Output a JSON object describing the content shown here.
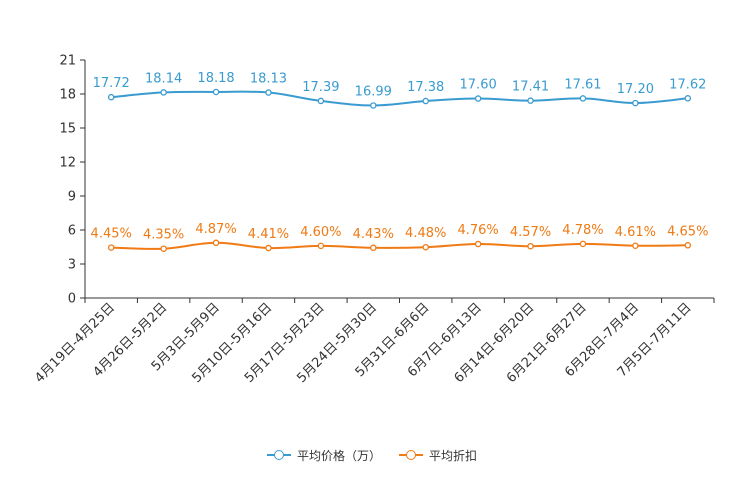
{
  "chart_data": {
    "type": "line",
    "title": "",
    "xlabel": "",
    "ylabel": "",
    "ylim": [
      0,
      21
    ],
    "yticks": [
      0,
      3,
      6,
      9,
      12,
      15,
      18,
      21
    ],
    "categories": [
      "4月19日-4月25日",
      "4月26日-5月2日",
      "5月3日-5月9日",
      "5月10日-5月16日",
      "5月17日-5月23日",
      "5月24日-5月30日",
      "5月31日-6月6日",
      "6月7日-6月13日",
      "6月14日-6月20日",
      "6月21日-6月27日",
      "6月28日-7月4日",
      "7月5日-7月11日"
    ],
    "series": [
      {
        "name": "平均价格（万）",
        "color": "#3a9bd0",
        "values": [
          17.72,
          18.14,
          18.18,
          18.13,
          17.39,
          16.99,
          17.38,
          17.6,
          17.41,
          17.61,
          17.2,
          17.62
        ],
        "labels": [
          "17.72",
          "18.14",
          "18.18",
          "18.13",
          "17.39",
          "16.99",
          "17.38",
          "17.60",
          "17.41",
          "17.61",
          "17.20",
          "17.62"
        ]
      },
      {
        "name": "平均折扣",
        "color": "#f07a14",
        "values": [
          4.45,
          4.35,
          4.87,
          4.41,
          4.6,
          4.43,
          4.48,
          4.76,
          4.57,
          4.78,
          4.61,
          4.65
        ],
        "labels": [
          "4.45%",
          "4.35%",
          "4.87%",
          "4.41%",
          "4.60%",
          "4.43%",
          "4.48%",
          "4.76%",
          "4.57%",
          "4.78%",
          "4.61%",
          "4.65%"
        ]
      }
    ],
    "legend_position": "bottom-center",
    "grid": false
  }
}
